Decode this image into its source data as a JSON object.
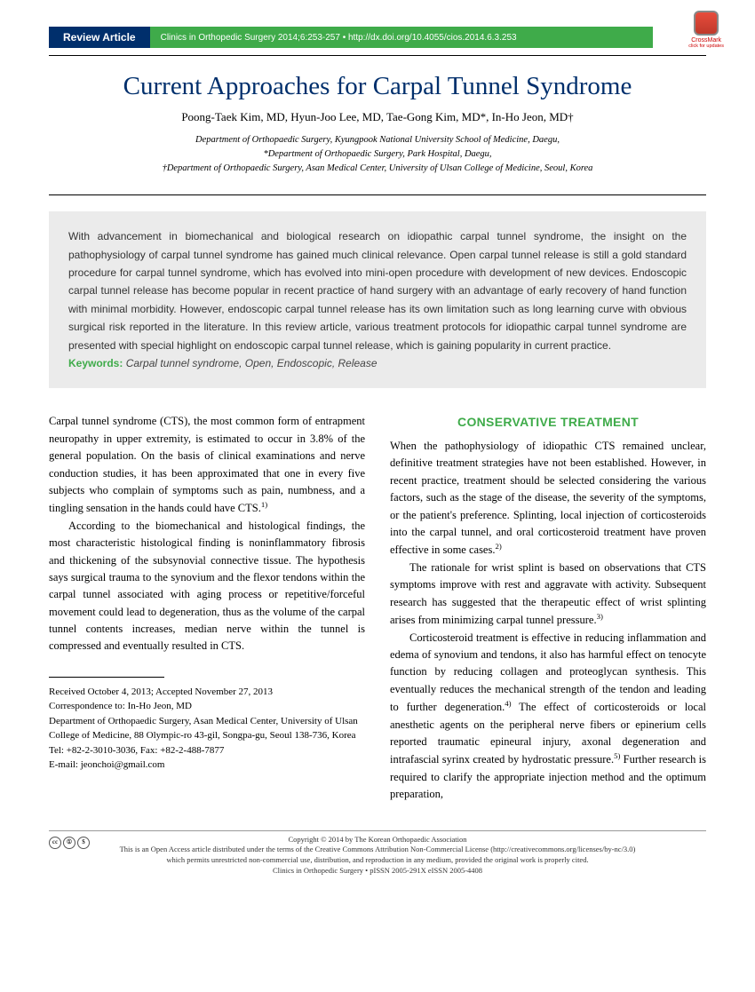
{
  "header": {
    "review_label": "Review Article",
    "journal_info": "Clinics in Orthopedic Surgery 2014;6:253-257 • http://dx.doi.org/10.4055/cios.2014.6.3.253",
    "crossmark_label": "CrossMark",
    "crossmark_sub": "click for updates"
  },
  "title": "Current Approaches for Carpal Tunnel Syndrome",
  "authors": "Poong-Taek Kim, MD, Hyun-Joo Lee, MD, Tae-Gong Kim, MD*, In-Ho Jeon, MD†",
  "affiliations": {
    "line1": "Department of Orthopaedic Surgery, Kyungpook National University School of Medicine, Daegu,",
    "line2": "*Department of Orthopaedic Surgery, Park Hospital, Daegu,",
    "line3": "†Department of Orthopaedic Surgery, Asan Medical Center, University of Ulsan College of Medicine, Seoul, Korea"
  },
  "abstract": {
    "text": "With advancement in biomechanical and biological research on idiopathic carpal tunnel syndrome, the insight on the pathophysiology of carpal tunnel syndrome has gained much clinical relevance. Open carpal tunnel release is still a gold standard procedure for carpal tunnel syndrome, which has evolved into mini-open procedure with development of new devices. Endoscopic carpal tunnel release has become popular in recent practice of hand surgery with an advantage of early recovery of hand function with minimal morbidity. However, endoscopic carpal tunnel release has its own limitation such as long learning curve with obvious surgical risk reported in the literature. In this review article, various treatment protocols for idiopathic carpal tunnel syndrome are presented with special highlight on endoscopic carpal tunnel release, which is gaining popularity in current practice.",
    "keywords_label": "Keywords:",
    "keywords": " Carpal tunnel syndrome, Open, Endoscopic, Release"
  },
  "body": {
    "intro_p1": "Carpal tunnel syndrome (CTS), the most common form of entrapment neuropathy in upper extremity, is estimated to occur in 3.8% of the general population. On the basis of clinical examinations and nerve conduction studies, it has been approximated that one in every five subjects who complain of symptoms such as pain, numbness, and a tingling sensation in the hands could have CTS.",
    "intro_p1_ref": "1)",
    "intro_p2": "According to the biomechanical and histological findings, the most characteristic histological finding is noninflammatory fibrosis and thickening of the subsynovial connective tissue. The hypothesis says surgical trauma to the synovium and the flexor tendons within the carpal tunnel associated with aging process or repetitive/forceful movement could lead to degeneration, thus as the volume of the carpal tunnel contents increases, median nerve within the tunnel is compressed and eventually resulted in CTS.",
    "section1_heading": "CONSERVATIVE TREATMENT",
    "section1_p1": "When the pathophysiology of idiopathic CTS remained unclear, definitive treatment strategies have not been established. However, in recent practice, treatment should be selected considering the various factors, such as the stage of the disease, the severity of the symptoms, or the patient's preference. Splinting, local injection of corticosteroids into the carpal tunnel, and oral corticosteroid treatment have proven effective in some cases.",
    "section1_p1_ref": "2)",
    "section1_p2": "The rationale for wrist splint is based on observations that CTS symptoms improve with rest and aggravate with activity. Subsequent research has suggested that the therapeutic effect of wrist splinting arises from minimizing carpal tunnel pressure.",
    "section1_p2_ref": "3)",
    "section1_p3a": "Corticosteroid treatment is effective in reducing inflammation and edema of synovium and tendons, it also has harmful effect on tenocyte function by reducing collagen and proteoglycan synthesis. This eventually reduces the mechanical strength of the tendon and leading to further degeneration.",
    "section1_p3_ref4": "4)",
    "section1_p3b": " The effect of corticosteroids or local anesthetic agents on the peripheral nerve fibers or epinerium cells reported traumatic epineural injury, axonal degeneration and intrafascial syrinx created by hydrostatic pressure.",
    "section1_p3_ref5": "5)",
    "section1_p3c": " Further research is required to clarify the appropriate injection method and the optimum preparation,"
  },
  "correspondence": {
    "received": "Received October 4, 2013; Accepted November 27, 2013",
    "to": "Correspondence to: In-Ho Jeon, MD",
    "address1": "Department of Orthopaedic Surgery, Asan Medical Center, University of Ulsan College of Medicine, 88 Olympic-ro 43-gil, Songpa-gu, Seoul 138-736, Korea",
    "tel": "Tel: +82-2-3010-3036, Fax: +82-2-488-7877",
    "email": "E-mail: jeonchoi@gmail.com"
  },
  "footer": {
    "copyright": "Copyright © 2014 by The Korean Orthopaedic Association",
    "license": "This is an Open Access article distributed under the terms of the Creative Commons Attribution Non-Commercial License (http://creativecommons.org/licenses/by-nc/3.0)",
    "license2": "which permits unrestricted non-commercial use, distribution, and reproduction in any medium, provided the original work is properly cited.",
    "issn": "Clinics in Orthopedic Surgery • pISSN 2005-291X   eISSN 2005-4408"
  },
  "colors": {
    "navy": "#002f6c",
    "green": "#3fab4a",
    "abstract_bg": "#ebebeb"
  }
}
